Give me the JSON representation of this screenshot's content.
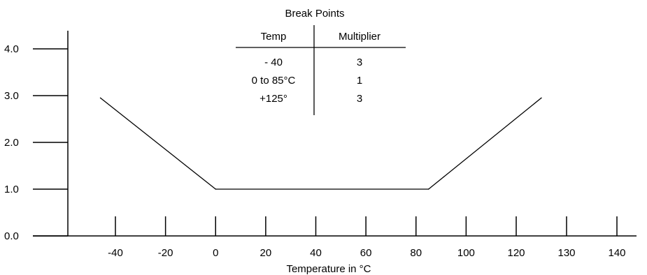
{
  "chart_data": {
    "type": "line",
    "title": "",
    "xlabel": "Temperature in °C",
    "ylabel": "",
    "x_tick_labels": [
      "-40",
      "-20",
      "0",
      "20",
      "40",
      "60",
      "80",
      "100",
      "120",
      "130",
      "140"
    ],
    "y_ticks": [
      0.0,
      1.0,
      2.0,
      3.0,
      4.0
    ],
    "y_tick_labels": [
      "0.0",
      "1.0",
      "2.0",
      "3.0",
      "4.0"
    ],
    "ylim": [
      0,
      4
    ],
    "grid": false,
    "series": [
      {
        "values": [
          {
            "x": -46,
            "y": 2.95
          },
          {
            "x": 0,
            "y": 1.0
          },
          {
            "x": 85,
            "y": 1.0
          },
          {
            "x": 125,
            "y": 2.95
          }
        ]
      }
    ],
    "break_points_table": {
      "title": "Break Points",
      "headers": [
        "Temp",
        "Multiplier"
      ],
      "rows": [
        [
          "- 40",
          "3"
        ],
        [
          "0 to 85°C",
          "1"
        ],
        [
          "+125°",
          "3"
        ]
      ]
    }
  }
}
